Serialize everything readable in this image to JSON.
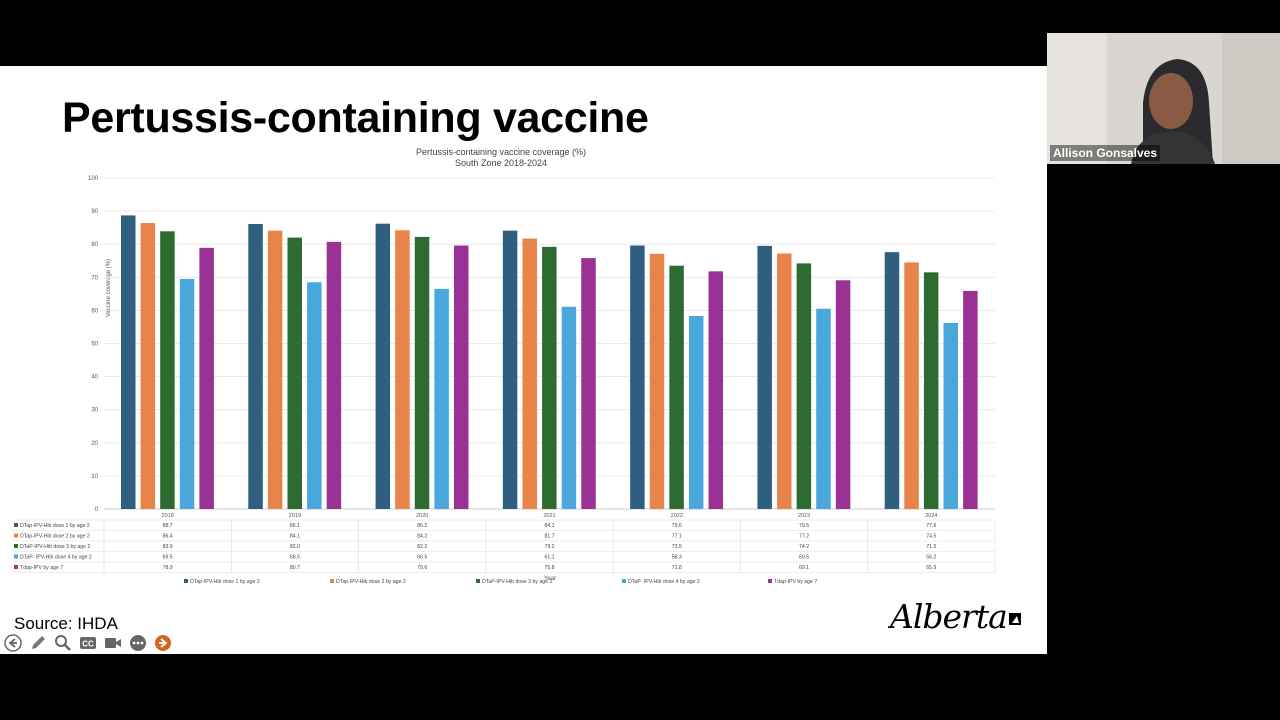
{
  "slide": {
    "title": "Pertussis-containing vaccine",
    "source": "Source: IHDA",
    "logo_text": "Alberta"
  },
  "participant": {
    "name": "Allison Gonsalves"
  },
  "toolbar": {
    "icons": [
      "back-arrow-icon",
      "pen-icon",
      "magnifier-icon",
      "closed-caption-icon",
      "camera-icon",
      "more-icon",
      "forward-arrow-icon"
    ]
  },
  "chart_data": {
    "type": "bar",
    "title": "Pertussis-containing vaccine coverage (%)",
    "subtitle": "South Zone 2018-2024",
    "xlabel": "Year",
    "ylabel": "Vaccine coverage (%)",
    "ylim": [
      0,
      100
    ],
    "yticks": [
      0,
      10,
      20,
      30,
      40,
      50,
      60,
      70,
      80,
      90,
      100
    ],
    "grid": true,
    "legend_position": "bottom",
    "categories": [
      "2018",
      "2019",
      "2020",
      "2021",
      "2022",
      "2023",
      "2024"
    ],
    "series": [
      {
        "name": "DTap-IPV-Hib dose 1 by age 2",
        "legend": "DTap-IPV-Hib dose 1 by age 2",
        "color": "#2e5f7e",
        "values": [
          88.7,
          86.1,
          86.2,
          84.1,
          79.6,
          79.5,
          77.6
        ],
        "labels": [
          "88.7",
          "86.1",
          "86.2",
          "84.1",
          "79.6",
          "79.5",
          "77.6"
        ]
      },
      {
        "name": "DTap-IPV-Hib dose 2 by age 2",
        "legend": "DTap-IPV-Hib dose 2 by age 2",
        "color": "#e8844a",
        "values": [
          86.4,
          84.1,
          84.2,
          81.7,
          77.1,
          77.2,
          74.5
        ],
        "labels": [
          "86.4",
          "84.1",
          "84.2",
          "81.7",
          "77.1",
          "77.2",
          "74.5"
        ]
      },
      {
        "name": "DTaP-IPV-Hib dose 3 by age 2",
        "legend": "DTaP-IPV-Hib dose 3 by age 2",
        "color": "#2e6b30",
        "values": [
          83.9,
          82.0,
          82.2,
          79.2,
          73.5,
          74.2,
          71.5
        ],
        "labels": [
          "83.9",
          "82.0",
          "82.2",
          "79.2",
          "73.5",
          "74.2",
          "71.5"
        ]
      },
      {
        "name": "DTaP- IPV-Hib dose 4 by age 2",
        "legend": "DTaP- IPV-Hib dose 4 by age 2",
        "color": "#4aa7dc",
        "values": [
          69.5,
          68.5,
          66.5,
          61.1,
          58.3,
          60.5,
          56.2
        ],
        "labels": [
          "69.5",
          "68.5",
          "66.5",
          "61.1",
          "58.3",
          "60.5",
          "56.2"
        ]
      },
      {
        "name": "Tdap-IPV by age 7",
        "legend": "Tdap-IPV by age 7",
        "color": "#9a3296",
        "values": [
          78.9,
          80.7,
          79.6,
          75.8,
          71.8,
          69.1,
          65.9
        ],
        "labels": [
          "78.9",
          "80.7",
          "79.6",
          "75.8",
          "71.8",
          "69.1",
          "65.9"
        ]
      }
    ]
  }
}
